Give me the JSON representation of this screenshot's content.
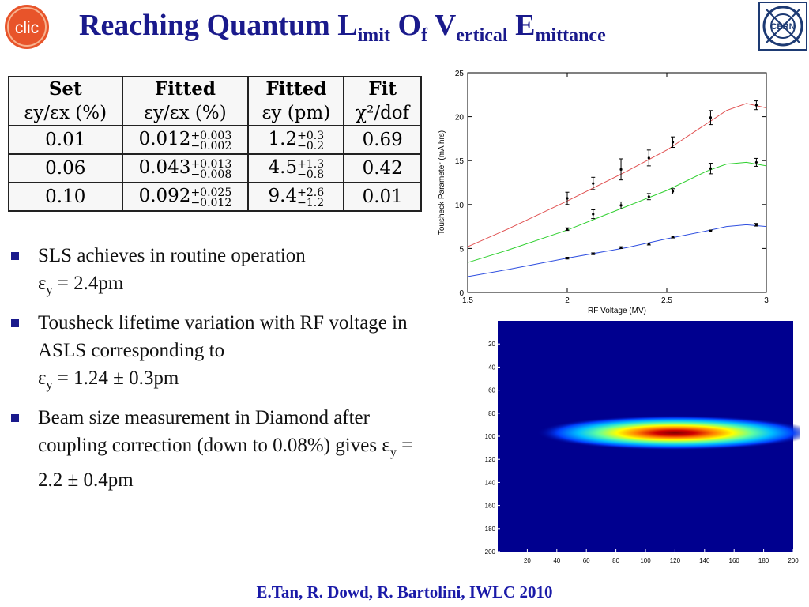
{
  "header": {
    "title_parts": [
      {
        "main": "Reaching Quantum L",
        "sub": "imit"
      },
      {
        "main": " O",
        "sub": "f"
      },
      {
        "main": " V",
        "sub": "ertical"
      },
      {
        "main": " E",
        "sub": "mittance"
      }
    ],
    "logo_left_text": "clic",
    "logo_right_text": "CERN",
    "accent_color": "#1a1a8c"
  },
  "table": {
    "head_row1": [
      "Set",
      "Fitted",
      "Fitted",
      "Fit"
    ],
    "head_row2": [
      "εy/εx (%)",
      "εy/εx (%)",
      "εy (pm)",
      "χ²/dof"
    ],
    "rows": [
      {
        "set": "0.01",
        "ratio": "0.012",
        "ratio_plus": "+0.003",
        "ratio_minus": "−0.002",
        "emit": "1.2",
        "emit_plus": "+0.3",
        "emit_minus": "−0.2",
        "chi": "0.69"
      },
      {
        "set": "0.06",
        "ratio": "0.043",
        "ratio_plus": "+0.013",
        "ratio_minus": "−0.008",
        "emit": "4.5",
        "emit_plus": "+1.3",
        "emit_minus": "−0.8",
        "chi": "0.42"
      },
      {
        "set": "0.10",
        "ratio": "0.092",
        "ratio_plus": "+0.025",
        "ratio_minus": "−0.012",
        "emit": "9.4",
        "emit_plus": "+2.6",
        "emit_minus": "−1.2",
        "chi": "0.01"
      }
    ]
  },
  "bullets": {
    "b1_line1": "SLS achieves in routine operation",
    "b1_eps": "ε",
    "b1_sub": "y",
    "b1_rest": " = 2.4pm",
    "b2_text": "Tousheck lifetime variation with RF voltage in ASLS corresponding  to",
    "b2_eps": "ε",
    "b2_sub": "y",
    "b2_rest": " = 1.24 ± 0.3pm",
    "b3_text": "Beam size measurement in Diamond after coupling correction (down to 0.08%)  gives ",
    "b3_eps": "ε",
    "b3_sub": "y",
    "b3_rest": " = 2.2 ± 0.4pm"
  },
  "chart_data": [
    {
      "type": "line",
      "xlabel": "RF Voltage (MV)",
      "ylabel": "Tousheck Parameter (mA hrs)",
      "xlim": [
        1.5,
        3
      ],
      "ylim": [
        0,
        25
      ],
      "xticks": [
        1.5,
        2,
        2.5,
        3
      ],
      "yticks": [
        0,
        5,
        10,
        15,
        20,
        25
      ],
      "series": [
        {
          "color": "#e05050",
          "curve_x": [
            1.5,
            1.7,
            2.0,
            2.3,
            2.5,
            2.7,
            2.8,
            2.9,
            3.0
          ],
          "curve_y": [
            5.2,
            7.2,
            10.4,
            13.8,
            16.2,
            19.2,
            20.7,
            21.5,
            21.0
          ],
          "points_x": [
            2.0,
            2.13,
            2.27,
            2.41,
            2.53,
            2.72,
            2.95
          ],
          "points_y": [
            10.7,
            12.4,
            14.0,
            15.3,
            17.1,
            19.9,
            21.3
          ],
          "errors": [
            0.7,
            0.7,
            1.2,
            0.9,
            0.6,
            0.8,
            0.5
          ]
        },
        {
          "color": "#30d030",
          "curve_x": [
            1.5,
            1.7,
            2.0,
            2.3,
            2.5,
            2.7,
            2.8,
            2.9,
            3.0
          ],
          "curve_y": [
            3.4,
            4.8,
            7.1,
            9.8,
            11.6,
            13.8,
            14.6,
            14.8,
            14.4
          ],
          "points_x": [
            2.0,
            2.13,
            2.27,
            2.41,
            2.53,
            2.72,
            2.95
          ],
          "points_y": [
            7.2,
            8.9,
            9.9,
            10.9,
            11.5,
            14.1,
            14.8
          ],
          "errors": [
            0.15,
            0.5,
            0.4,
            0.35,
            0.3,
            0.6,
            0.45
          ]
        },
        {
          "color": "#3050e0",
          "curve_x": [
            1.5,
            1.7,
            2.0,
            2.3,
            2.5,
            2.7,
            2.8,
            2.9,
            3.0
          ],
          "curve_y": [
            1.8,
            2.6,
            3.9,
            5.1,
            6.1,
            7.0,
            7.5,
            7.7,
            7.5
          ],
          "points_x": [
            2.0,
            2.13,
            2.27,
            2.41,
            2.53,
            2.72,
            2.95
          ],
          "points_y": [
            3.9,
            4.4,
            5.1,
            5.5,
            6.3,
            7.0,
            7.7
          ],
          "errors": [
            0.1,
            0.1,
            0.1,
            0.1,
            0.1,
            0.1,
            0.15
          ]
        }
      ]
    },
    {
      "type": "heatmap",
      "xlim": [
        0,
        200
      ],
      "ylim": [
        0,
        200
      ],
      "xticks": [
        20,
        40,
        60,
        80,
        100,
        120,
        140,
        160,
        180,
        200
      ],
      "yticks": [
        20,
        40,
        60,
        80,
        100,
        120,
        140,
        160,
        180,
        200
      ],
      "background_color": "#00008f",
      "spot_center_x": 120,
      "spot_center_y": 97,
      "colormap": [
        "#00008f",
        "#0040ff",
        "#00c0ff",
        "#60ffa0",
        "#ffff00",
        "#ff8000",
        "#e00000",
        "#800000"
      ]
    }
  ],
  "footer": {
    "credit": "E.Tan, R. Dowd, R. Bartolini, IWLC 2010"
  }
}
